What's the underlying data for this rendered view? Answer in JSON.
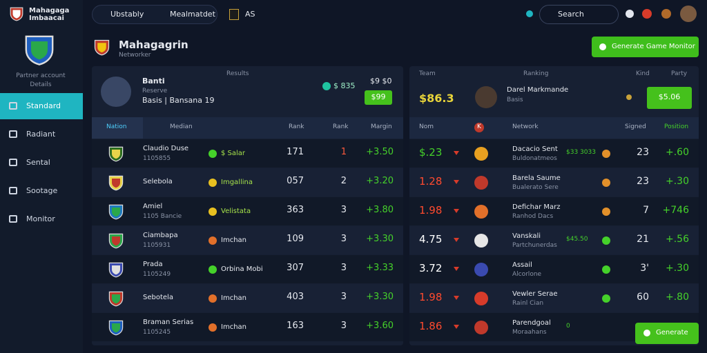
{
  "sidebar": {
    "brand": [
      "Mahagaga",
      "Imbaacai"
    ],
    "account": [
      "Partner account",
      "Details"
    ],
    "nav": [
      "Standard",
      "Radiant",
      "Sental",
      "Sootage",
      "Monitor"
    ]
  },
  "topbar": {
    "tabs": [
      "Ubstably",
      "Mealmatdet"
    ],
    "badge": "AS",
    "search": "Search"
  },
  "header": {
    "title": "Mahagagrin",
    "subtitle": "Networker",
    "button": "Generate Game Monitor"
  },
  "left": {
    "profile": {
      "name": "Banti",
      "role": "Reserve",
      "detail": "Basis | Bansana 19"
    },
    "results": {
      "label": "Results",
      "amount": "$ 835",
      "small": "$9 $0",
      "button": "$99"
    },
    "columns": [
      "Nation",
      "Median",
      "Rank",
      "Rank",
      "Margin"
    ],
    "rows": [
      {
        "name": "Claudio Duse",
        "sub": "1105855",
        "tag": "$ Salar",
        "a": "171",
        "b": "1",
        "b_color": "#ff5a3c",
        "c": "+3.50"
      },
      {
        "name": "Selebola",
        "tag": "Imgallina",
        "a": "057",
        "b": "2",
        "c": "+3.20"
      },
      {
        "name": "Amiel",
        "sub": "1105 Bancie",
        "tag": "Velistata",
        "a": "363",
        "b": "3",
        "c": "+3.80"
      },
      {
        "name": "Ciambapa",
        "sub": "1105931",
        "tag": "Imchan",
        "a": "109",
        "b": "3",
        "c": "+3.30"
      },
      {
        "name": "Prada",
        "sub": "1105249",
        "tag": "Orbina Mobi",
        "a": "307",
        "b": "3",
        "c": "+3.33"
      },
      {
        "name": "Sebotela",
        "tag": "Imchan",
        "a": "403",
        "b": "3",
        "c": "+3.30"
      },
      {
        "name": "Braman Serias",
        "sub": "1105245",
        "tag": "Imchan",
        "a": "163",
        "b": "3",
        "c": "+3.60"
      }
    ]
  },
  "right": {
    "header": [
      "Team",
      "Ranking",
      "Kind",
      "Party"
    ],
    "amount": "$86.3",
    "player": {
      "name": "Darel Markmande",
      "role": "Basis"
    },
    "button": "$5.06",
    "columns": [
      "Nom",
      "K",
      "Network",
      "Signed",
      "Position"
    ],
    "rows": [
      {
        "value": "$.23",
        "color": "#45d12a",
        "name": "Dacacio Sent",
        "sub": "Buldonatmeos",
        "extra": "$33 3033",
        "score": "23",
        "change": "+.60"
      },
      {
        "value": "1.28",
        "color": "#ff4a2e",
        "name": "Barela Saume",
        "sub": "Bualerato Sere",
        "score": "23",
        "change": "+.30"
      },
      {
        "value": "1.98",
        "color": "#ff4a2e",
        "name": "Defichar Marz",
        "sub": "Ranhod Dacs",
        "score": "7",
        "change": "+746"
      },
      {
        "value": "4.75",
        "color": "#ffffff",
        "name": "Vanskali",
        "sub": "Partchunerdas",
        "extra": "$45.50",
        "score": "21",
        "change": "+.56"
      },
      {
        "value": "3.72",
        "color": "#ffffff",
        "name": "Assail",
        "sub": "Alcorlone",
        "score": "3'",
        "change": "+.30"
      },
      {
        "value": "1.98",
        "color": "#ff4a2e",
        "name": "Vewler Serae",
        "sub": "Rainl Cian",
        "score": "60",
        "change": "+.80"
      },
      {
        "value": "1.86",
        "color": "#ff4a2e",
        "name": "Parendgoal",
        "sub": "Moraahans",
        "extra": "0"
      }
    ],
    "fab": "Generate"
  }
}
